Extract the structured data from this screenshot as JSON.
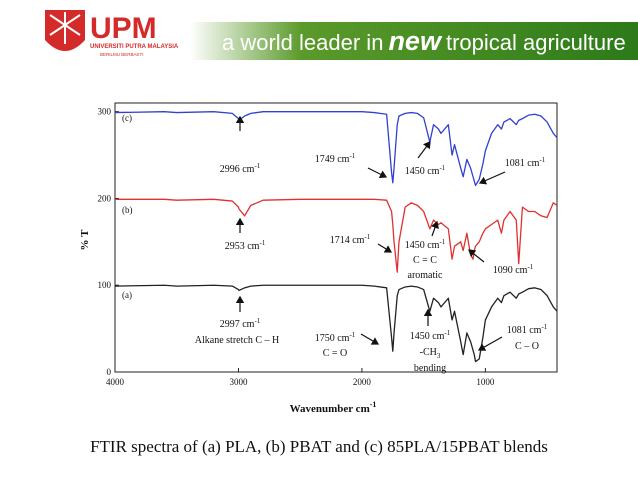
{
  "header": {
    "logo": "UPM",
    "university": "UNIVERSITI PUTRA MALAYSIA",
    "motto": "BERILMU BERBAKTI",
    "slogan_start": "a world leader in",
    "slogan_new": "new",
    "slogan_end": "tropical agriculture"
  },
  "caption": "FTIR spectra of (a) PLA, (b) PBAT and (c) 85PLA/15PBAT blends",
  "chart_data": {
    "type": "line",
    "xlabel": {
      "text": "Wavenumber cm",
      "sup": "-1"
    },
    "ylabel": "% T",
    "x": [
      4000,
      3600,
      3500,
      3200,
      3050,
      3000,
      2996,
      2950,
      2900,
      2800,
      2500,
      2000,
      1900,
      1800,
      1760,
      1750,
      1740,
      1714,
      1700,
      1650,
      1600,
      1550,
      1500,
      1450,
      1420,
      1380,
      1360,
      1300,
      1270,
      1250,
      1200,
      1180,
      1150,
      1120,
      1100,
      1090,
      1080,
      1050,
      1020,
      1000,
      950,
      900,
      870,
      850,
      800,
      750,
      730,
      700,
      650,
      600,
      550,
      500,
      450,
      420
    ],
    "series": [
      {
        "name": "(a)",
        "color": "#222222",
        "values": [
          99,
          100,
          99,
          100,
          99,
          95,
          94,
          97,
          99,
          100,
          100,
          100,
          99,
          97,
          40,
          24,
          45,
          88,
          95,
          98,
          99,
          98,
          95,
          70,
          85,
          80,
          75,
          85,
          60,
          70,
          35,
          20,
          45,
          35,
          25,
          20,
          12,
          15,
          40,
          60,
          75,
          85,
          80,
          88,
          92,
          85,
          90,
          92,
          96,
          97,
          95,
          88,
          75,
          70
        ]
      },
      {
        "name": "(b)",
        "color": "#e03030",
        "values": [
          199,
          199,
          198,
          199,
          197,
          190,
          188,
          180,
          192,
          198,
          199,
          199,
          199,
          198,
          185,
          170,
          150,
          115,
          150,
          190,
          195,
          192,
          185,
          165,
          175,
          170,
          172,
          165,
          130,
          145,
          150,
          140,
          160,
          135,
          130,
          140,
          145,
          150,
          160,
          165,
          170,
          175,
          160,
          175,
          185,
          175,
          125,
          190,
          185,
          185,
          180,
          178,
          195,
          192
        ]
      },
      {
        "name": "(c)",
        "color": "#3040d0",
        "values": [
          299,
          300,
          299,
          300,
          298,
          292,
          290,
          295,
          298,
          300,
          300,
          300,
          299,
          297,
          230,
          218,
          235,
          285,
          295,
          298,
          299,
          298,
          293,
          265,
          285,
          280,
          275,
          285,
          250,
          262,
          235,
          225,
          245,
          235,
          225,
          220,
          215,
          222,
          240,
          255,
          275,
          285,
          280,
          288,
          292,
          285,
          290,
          292,
          296,
          297,
          295,
          288,
          275,
          270
        ]
      }
    ],
    "xlim": [
      4000,
      420
    ],
    "xticks": [
      4000,
      3000,
      2000,
      1000
    ],
    "ylim": [
      0,
      310
    ],
    "yticks": [
      0,
      100,
      200,
      300
    ],
    "annotations": [
      {
        "text": "2996 cm",
        "sup": "-1"
      },
      {
        "text": "1749 cm",
        "sup": "-1"
      },
      {
        "text": "1450 cm",
        "sup": "-1"
      },
      {
        "text": "1081 cm",
        "sup": "-1"
      },
      {
        "text": "2953 cm",
        "sup": "-1"
      },
      {
        "text": "1714 cm",
        "sup": "-1"
      },
      {
        "text": "1450 cm",
        "sup": "-1"
      },
      {
        "text": "C = C"
      },
      {
        "text": "aromatic"
      },
      {
        "text": "1090 cm",
        "sup": "-1"
      },
      {
        "text": "2997 cm",
        "sup": "-1"
      },
      {
        "text": "Alkane stretch  C – H"
      },
      {
        "text": "1750 cm",
        "sup": "-1"
      },
      {
        "text": "C = O"
      },
      {
        "text": "1450 cm",
        "sup": "-1"
      },
      {
        "text": "-CH",
        "sub": "3"
      },
      {
        "text": "bending"
      },
      {
        "text": "1081 cm",
        "sup": "-1"
      },
      {
        "text": "C – O"
      }
    ]
  }
}
